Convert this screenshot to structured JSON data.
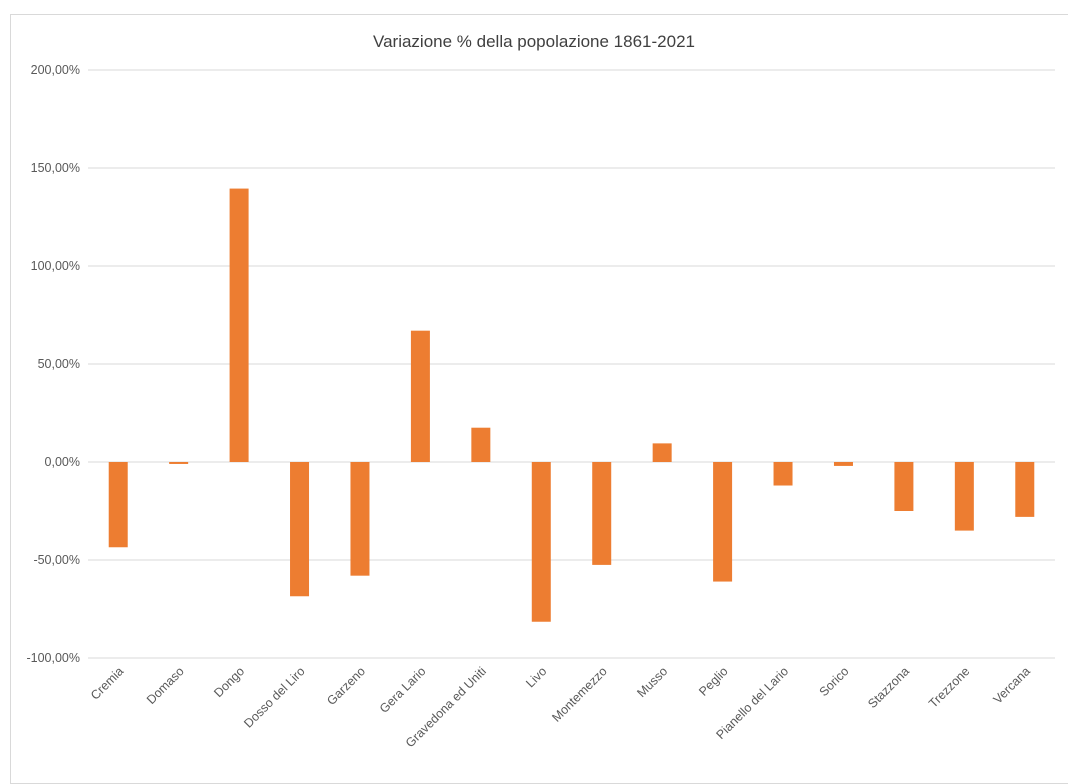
{
  "chart_data": {
    "type": "bar",
    "title": "Variazione % della popolazione 1861-2021",
    "categories": [
      "Cremia",
      "Domaso",
      "Dongo",
      "Dosso del Liro",
      "Garzeno",
      "Gera Lario",
      "Gravedona ed Uniti",
      "Livo",
      "Montemezzo",
      "Musso",
      "Peglio",
      "Pianello del Lario",
      "Sorico",
      "Stazzona",
      "Trezzone",
      "Vercana"
    ],
    "values": [
      -43.5,
      -1.0,
      139.5,
      -68.5,
      -58.0,
      67.0,
      17.5,
      -81.5,
      -52.5,
      9.5,
      -61.0,
      -12.0,
      -2.0,
      -25.0,
      -35.0,
      -28.0
    ],
    "ylim": [
      -100,
      200
    ],
    "yticks": [
      -100,
      -50,
      0,
      50,
      100,
      150,
      200
    ],
    "ytick_labels": [
      "-100,00%",
      "-50,00%",
      "0,00%",
      "50,00%",
      "100,00%",
      "150,00%",
      "200,00%"
    ],
    "bar_color": "#ED7D31",
    "grid": true
  }
}
